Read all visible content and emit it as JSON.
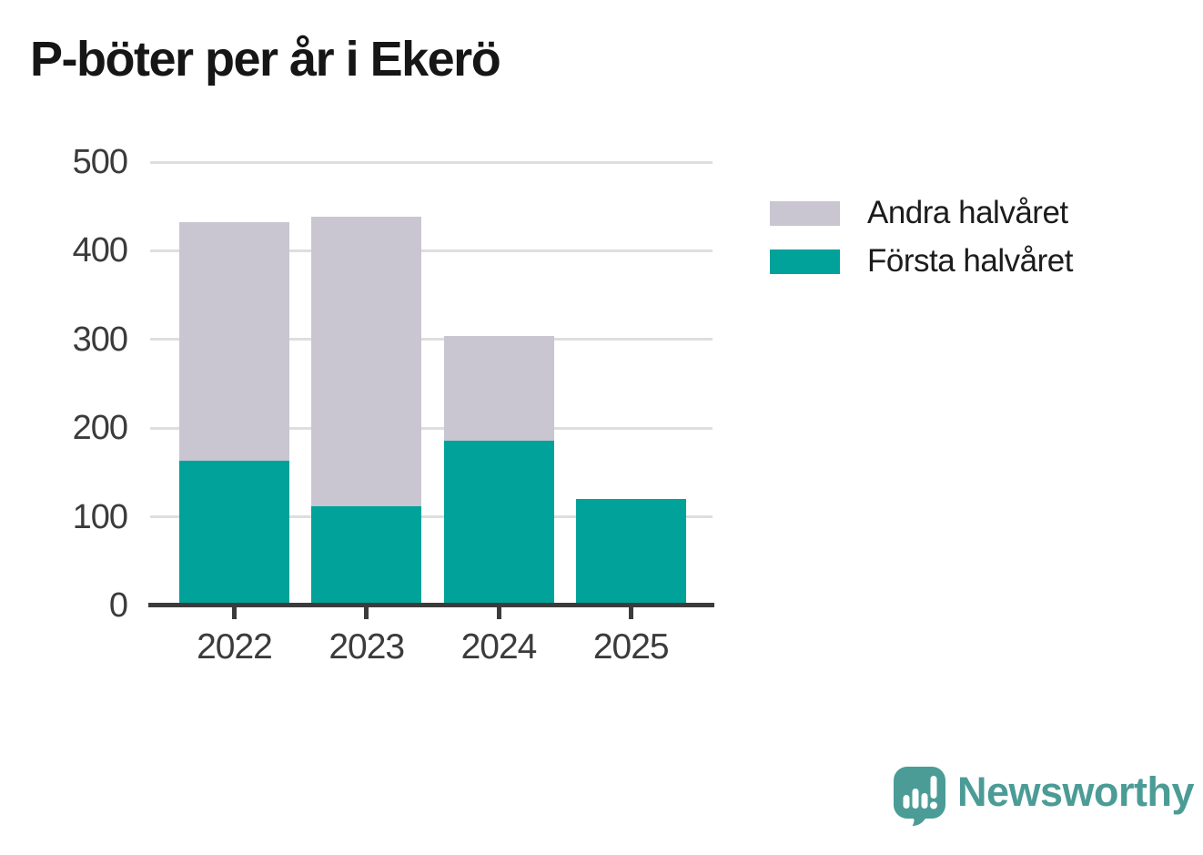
{
  "title": "P-böter per år i Ekerö",
  "legend": [
    {
      "label": "Andra halvåret",
      "color": "#c9c6d1"
    },
    {
      "label": "Första halvåret",
      "color": "#00a299"
    }
  ],
  "branding": {
    "logo_text": "Newsworthy",
    "color": "#4b9c96"
  },
  "colors": {
    "axis": "#3b3b3b",
    "grid": "#dedede",
    "tick_label": "#3b3b3b",
    "title": "#161616"
  },
  "chart_data": {
    "type": "bar",
    "stacked": true,
    "title": "P-böter per år i Ekerö",
    "categories": [
      "2022",
      "2023",
      "2024",
      "2025"
    ],
    "series": [
      {
        "name": "Första halvåret",
        "color": "#00a299",
        "values": [
          163,
          112,
          186,
          120
        ]
      },
      {
        "name": "Andra halvåret",
        "color": "#c9c6d1",
        "values": [
          269,
          326,
          118,
          0
        ]
      }
    ],
    "totals": [
      432,
      438,
      304,
      120
    ],
    "xlabel": "",
    "ylabel": "",
    "ylim": [
      0,
      500
    ],
    "yticks": [
      0,
      100,
      200,
      300,
      400,
      500
    ],
    "grid": true,
    "legend_position": "right"
  }
}
